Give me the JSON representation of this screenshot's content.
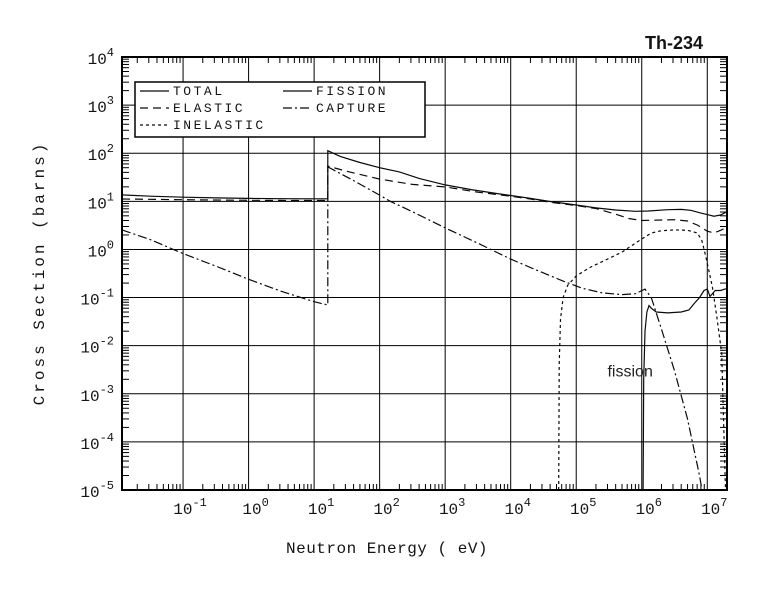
{
  "page": {
    "background": "#ffffff"
  },
  "colors": {
    "line": "#0a0a0a",
    "grid": "#000000",
    "text": "#141414",
    "frame": "#000000"
  },
  "chart_data": {
    "type": "line",
    "title": "Th-234",
    "xlabel": "Neutron Energy ( eV)",
    "ylabel": "Cross Section (barns)",
    "x_scale": "log",
    "y_scale": "log",
    "xlim": [
      0.0117,
      20000000
    ],
    "ylim": [
      1e-05,
      10000
    ],
    "grid": true,
    "tick_base": "10",
    "x_tick_exponents": [
      -1,
      0,
      1,
      2,
      3,
      4,
      5,
      6,
      7
    ],
    "y_tick_exponents": [
      4,
      3,
      2,
      1,
      0,
      -1,
      -2,
      -3,
      -4,
      -5
    ],
    "legend": {
      "position": "top-left-inside",
      "columns": 2
    },
    "annotation": {
      "text": "fission",
      "E": 300000,
      "sigma": 0.0023
    },
    "series": [
      {
        "name": "TOTAL",
        "dash": "solid",
        "legend_col": 0,
        "legend_row": 0,
        "points": [
          [
            0.0117,
            13.6
          ],
          [
            0.0316,
            12.8
          ],
          [
            0.1,
            12.2
          ],
          [
            0.316,
            11.8
          ],
          [
            1,
            11.5
          ],
          [
            3.16,
            11.35
          ],
          [
            10,
            11.3
          ],
          [
            16.2,
            11.3
          ],
          [
            16.2,
            113
          ],
          [
            25,
            86
          ],
          [
            50,
            64
          ],
          [
            100,
            50
          ],
          [
            200,
            41
          ],
          [
            400,
            30
          ],
          [
            1000,
            22
          ],
          [
            2500,
            17.5
          ],
          [
            6300,
            14.5
          ],
          [
            10000,
            13.2
          ],
          [
            20000,
            11.5
          ],
          [
            40000,
            9.9
          ],
          [
            100000,
            8.4
          ],
          [
            200000,
            7.3
          ],
          [
            400000,
            6.6
          ],
          [
            800000,
            6.2
          ],
          [
            1260000,
            6.3
          ],
          [
            2500000,
            6.7
          ],
          [
            4000000,
            6.8
          ],
          [
            5600000,
            6.5
          ],
          [
            8000000,
            5.7
          ],
          [
            10000000,
            5.3
          ],
          [
            12600000,
            4.9
          ],
          [
            16000000,
            5.2
          ],
          [
            20000000,
            6.1
          ]
        ]
      },
      {
        "name": "ELASTIC",
        "dash": "long-dash",
        "legend_col": 0,
        "legend_row": 1,
        "points": [
          [
            0.0117,
            11.2
          ],
          [
            0.1,
            10.8
          ],
          [
            1,
            10.5
          ],
          [
            10,
            10.4
          ],
          [
            16.2,
            10.4
          ],
          [
            16.2,
            54
          ],
          [
            31.6,
            42
          ],
          [
            100,
            29
          ],
          [
            316,
            22.5
          ],
          [
            1000,
            20
          ],
          [
            3160,
            15.5
          ],
          [
            10000,
            12.8
          ],
          [
            20000,
            11.2
          ],
          [
            40000,
            9.6
          ],
          [
            100000,
            8.2
          ],
          [
            200000,
            7.1
          ],
          [
            400000,
            5.4
          ],
          [
            630000,
            4.4
          ],
          [
            1000000,
            4.0
          ],
          [
            2000000,
            4.1
          ],
          [
            3160000,
            4.15
          ],
          [
            5000000,
            3.9
          ],
          [
            7100000,
            3.2
          ],
          [
            10000000,
            2.4
          ],
          [
            12600000,
            2.2
          ],
          [
            16000000,
            2.5
          ],
          [
            20000000,
            2.9
          ]
        ]
      },
      {
        "name": "INELASTIC",
        "dash": "short-dash",
        "legend_col": 0,
        "legend_row": 2,
        "points": [
          [
            54000,
            1e-05
          ],
          [
            55000,
            0.004
          ],
          [
            57500,
            0.035
          ],
          [
            63000,
            0.1
          ],
          [
            74000,
            0.18
          ],
          [
            100000,
            0.28
          ],
          [
            160000,
            0.42
          ],
          [
            250000,
            0.56
          ],
          [
            500000,
            0.88
          ],
          [
            900000,
            1.5
          ],
          [
            1400000,
            2.2
          ],
          [
            2000000,
            2.45
          ],
          [
            3160000,
            2.55
          ],
          [
            5000000,
            2.5
          ],
          [
            7100000,
            2.2
          ],
          [
            8300000,
            1.5
          ],
          [
            9300000,
            0.8
          ],
          [
            10500000,
            0.38
          ],
          [
            12000000,
            0.16
          ],
          [
            14000000,
            0.04
          ],
          [
            16600000,
            0.007
          ],
          [
            19000000,
            1e-05
          ]
        ]
      },
      {
        "name": "FISSION",
        "dash": "solid",
        "legend_col": 1,
        "legend_row": 0,
        "points": [
          [
            1050000,
            1e-05
          ],
          [
            1070000,
            0.002
          ],
          [
            1120000,
            0.02
          ],
          [
            1200000,
            0.05
          ],
          [
            1290000,
            0.068
          ],
          [
            1400000,
            0.06
          ],
          [
            1660000,
            0.05
          ],
          [
            2500000,
            0.048
          ],
          [
            4000000,
            0.05
          ],
          [
            5250000,
            0.055
          ],
          [
            6300000,
            0.075
          ],
          [
            7600000,
            0.1
          ],
          [
            8900000,
            0.14
          ],
          [
            10000000,
            0.15
          ],
          [
            11000000,
            0.105
          ],
          [
            13200000,
            0.14
          ],
          [
            16000000,
            0.14
          ],
          [
            20000000,
            0.155
          ]
        ]
      },
      {
        "name": "CAPTURE",
        "dash": "dash-dot",
        "legend_col": 1,
        "legend_row": 1,
        "points": [
          [
            0.0117,
            2.55
          ],
          [
            0.0316,
            1.6
          ],
          [
            0.1,
            0.82
          ],
          [
            0.316,
            0.45
          ],
          [
            1,
            0.24
          ],
          [
            3.16,
            0.135
          ],
          [
            10,
            0.082
          ],
          [
            16.2,
            0.07
          ],
          [
            16.2,
            52
          ],
          [
            40,
            27
          ],
          [
            100,
            13.5
          ],
          [
            145,
            10
          ],
          [
            316,
            6.1
          ],
          [
            1000,
            2.8
          ],
          [
            3160,
            1.35
          ],
          [
            10000,
            0.63
          ],
          [
            25000,
            0.37
          ],
          [
            63000,
            0.22
          ],
          [
            126000,
            0.155
          ],
          [
            250000,
            0.125
          ],
          [
            500000,
            0.115
          ],
          [
            800000,
            0.12
          ],
          [
            1120000,
            0.15
          ],
          [
            1400000,
            0.1
          ],
          [
            2000000,
            0.022
          ],
          [
            3160000,
            0.003
          ],
          [
            5000000,
            0.0003
          ],
          [
            7600000,
            2e-05
          ],
          [
            8300000,
            1e-05
          ]
        ]
      }
    ]
  }
}
